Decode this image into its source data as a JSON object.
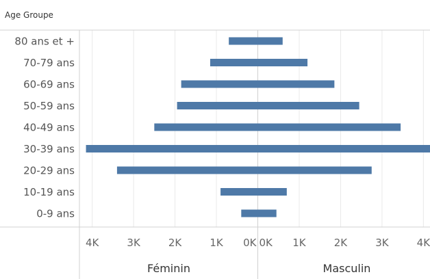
{
  "chart_data": {
    "type": "bar",
    "orientation": "horizontal",
    "header": "Age Groupe",
    "categories": [
      "80 ans et +",
      "70-79 ans",
      "60-69 ans",
      "50-59 ans",
      "40-49 ans",
      "30-39 ans",
      "20-29 ans",
      "10-19 ans",
      "0-9 ans"
    ],
    "series": [
      {
        "name": "Féminin",
        "values": [
          700,
          1150,
          1850,
          1950,
          2500,
          4150,
          3400,
          900,
          400
        ]
      },
      {
        "name": "Masculin",
        "values": [
          600,
          1200,
          1850,
          2450,
          3450,
          4350,
          2750,
          700,
          450
        ]
      }
    ],
    "xlim": [
      0,
      4300
    ],
    "ticks": [
      {
        "value": 4000,
        "label": "4K"
      },
      {
        "value": 3000,
        "label": "3K"
      },
      {
        "value": 2000,
        "label": "2K"
      },
      {
        "value": 1000,
        "label": "1K"
      },
      {
        "value": 0,
        "label": "0K"
      }
    ],
    "grid": true,
    "color": "#4e79a7"
  }
}
